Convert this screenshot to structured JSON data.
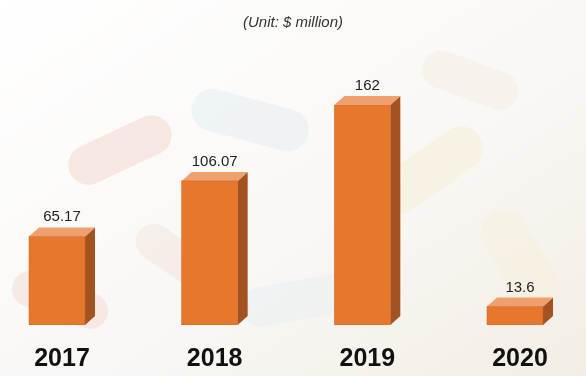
{
  "chart_data": {
    "type": "bar",
    "title": "(Unit: $ million)",
    "categories": [
      "2017",
      "2018",
      "2019",
      "2020"
    ],
    "values": [
      65.17,
      106.07,
      162,
      13.6
    ],
    "color": "#e8772e",
    "ylim": [
      0,
      162
    ],
    "data_labels": true,
    "tick_labels": "x",
    "grid": false
  }
}
